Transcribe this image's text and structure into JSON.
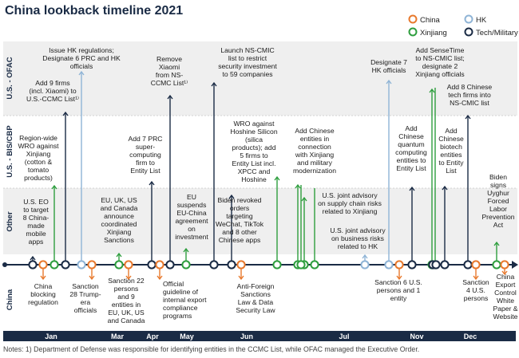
{
  "title": "China lookback timeline 2021",
  "note": "Notes: 1) Department of Defense was responsible for identifying entities in the CCMC List, while OFAC managed the Executive Order.",
  "legend": [
    {
      "label": "China",
      "color": "#e8792d"
    },
    {
      "label": "HK",
      "color": "#8fb4d6"
    },
    {
      "label": "Xinjiang",
      "color": "#2e9e3e"
    },
    {
      "label": "Tech/Military",
      "color": "#1a2b45"
    }
  ],
  "band_labels": {
    "ofac": "U.S. - OFAC",
    "bis": "U.S. - BIS/CBP",
    "other": "Other",
    "china": "China"
  },
  "months": [
    "Jan",
    "Mar",
    "Apr",
    "May",
    "Jun",
    "Jul",
    "Nov",
    "Dec"
  ],
  "colors": {
    "china": "#e8792d",
    "hk": "#8fb4d6",
    "xinjiang": "#2e9e3e",
    "tech": "#1a2b45",
    "axis_bar": "#1a2b45",
    "band": "#efefef"
  },
  "chart_data": {
    "type": "timeline",
    "title": "China lookback timeline 2021",
    "categories": [
      "U.S. - OFAC",
      "U.S. - BIS/CBP",
      "Other",
      "China"
    ],
    "months": [
      "Jan",
      "Mar",
      "Apr",
      "May",
      "Jun",
      "Jul",
      "Nov",
      "Dec"
    ],
    "events": [
      {
        "id": "e1",
        "row": "U.S. - OFAC",
        "category": "Tech/Military",
        "text": "Add 9 firms (incl. Xiaomi) to U.S.-CCMC List¹⁾"
      },
      {
        "id": "e2",
        "row": "U.S. - OFAC",
        "category": "HK",
        "text": "Issue HK regulations; Designate 6 PRC and HK officials"
      },
      {
        "id": "e3",
        "row": "U.S. - OFAC",
        "category": "Tech/Military",
        "text": "Remove Xiaomi from NS-CCMC List¹⁾"
      },
      {
        "id": "e4",
        "row": "U.S. - OFAC",
        "category": "Tech/Military",
        "text": "Launch NS-CMIC list to restrict security investment to 59 companies"
      },
      {
        "id": "e5",
        "row": "U.S. - OFAC",
        "category": "HK",
        "text": "Designate 7 HK officials"
      },
      {
        "id": "e6",
        "row": "U.S. - OFAC",
        "category": "Xinjiang",
        "text": "Add SenseTime to NS-CMIC list; designate 2 Xinjiang officials"
      },
      {
        "id": "e7",
        "row": "U.S. - OFAC",
        "category": "Tech/Military",
        "text": "Add 8 Chinese tech firms into NS-CMIC list"
      },
      {
        "id": "e8",
        "row": "U.S. - BIS/CBP",
        "category": "Xinjiang",
        "text": "Region-wide WRO against Xinjiang (cotton & tomato products)"
      },
      {
        "id": "e9",
        "row": "U.S. - BIS/CBP",
        "category": "Tech/Military",
        "text": "Add 7 PRC super-computing firm to Entity List"
      },
      {
        "id": "e10",
        "row": "U.S. - BIS/CBP",
        "category": "Xinjiang",
        "text": "WRO against Hoshine Silicon (silica products); add 5 firms to Entity List incl. XPCC and Hoshine"
      },
      {
        "id": "e11",
        "row": "U.S. - BIS/CBP",
        "category": "Xinjiang",
        "text": "Add Chinese entities in connection with Xinjiang and military modernization"
      },
      {
        "id": "e12",
        "row": "U.S. - BIS/CBP",
        "category": "Tech/Military",
        "text": "Add Chinese quantum computing entities to Entity List"
      },
      {
        "id": "e13",
        "row": "U.S. - BIS/CBP",
        "category": "Tech/Military",
        "text": "Add Chinese biotech entities to Entity List"
      },
      {
        "id": "e14",
        "row": "Other",
        "category": "Tech/Military",
        "text": "U.S. EO to target 8 China-made mobile apps"
      },
      {
        "id": "e15",
        "row": "Other",
        "category": "Xinjiang",
        "text": "EU, UK, US and Canada announce coordinated Xinjiang Sanctions"
      },
      {
        "id": "e16",
        "row": "Other",
        "category": "Xinjiang",
        "text": "EU suspends EU-China agreement on investment"
      },
      {
        "id": "e17",
        "row": "Other",
        "category": "Tech/Military",
        "text": "Biden revoked orders targeting WeChat, TikTok and 8 other Chinese apps"
      },
      {
        "id": "e18",
        "row": "Other",
        "category": "Xinjiang",
        "text": "U.S. joint advisory on supply chain risks related to Xinjiang"
      },
      {
        "id": "e19",
        "row": "Other",
        "category": "HK",
        "text": "U.S. joint advisory on business risks related to HK"
      },
      {
        "id": "e20",
        "row": "Other",
        "category": "Xinjiang",
        "text": "Biden signs Uyghur Forced Labor Prevention Act"
      },
      {
        "id": "e21",
        "row": "China",
        "category": "China",
        "text": "China blocking regulation"
      },
      {
        "id": "e22",
        "row": "China",
        "category": "China",
        "text": "Sanction 28 Trump-era officials"
      },
      {
        "id": "e23",
        "row": "China",
        "category": "China",
        "text": "Sanction 22 persons and 9 entities in EU, UK, US and Canada"
      },
      {
        "id": "e24",
        "row": "China",
        "category": "China",
        "text": "Official guideline of internal export compliance programs"
      },
      {
        "id": "e25",
        "row": "China",
        "category": "China",
        "text": "Anti-Foreign Sanctions Law & Data Security Law"
      },
      {
        "id": "e26",
        "row": "China",
        "category": "China",
        "text": "Sanction 6 U.S. persons and 1 entity"
      },
      {
        "id": "e27",
        "row": "China",
        "category": "China",
        "text": "Sanction 4 U.S. persons"
      },
      {
        "id": "e28",
        "row": "China",
        "category": "China",
        "text": "China Export Control White Paper & Website"
      }
    ]
  }
}
